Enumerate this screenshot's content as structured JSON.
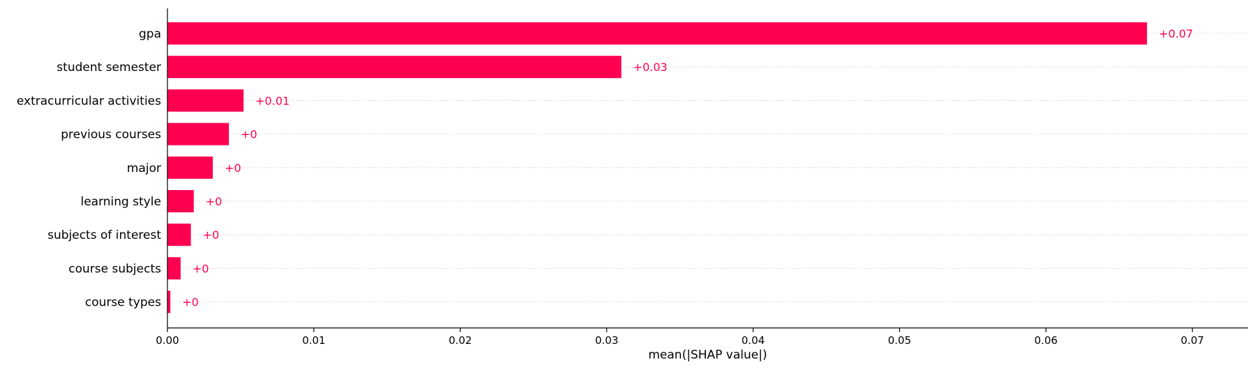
{
  "chart_data": {
    "type": "bar",
    "orientation": "horizontal",
    "categories": [
      "gpa",
      "student semester",
      "extracurricular activities",
      "previous courses",
      "major",
      "learning style",
      "subjects of interest",
      "course subjects",
      "course types"
    ],
    "values": [
      0.0669,
      0.031,
      0.0052,
      0.0042,
      0.0031,
      0.0018,
      0.0016,
      0.0009,
      0.0002
    ],
    "value_labels": [
      "+0.07",
      "+0.03",
      "+0.01",
      "+0",
      "+0",
      "+0",
      "+0",
      "+0",
      "+0"
    ],
    "xlabel": "mean(|SHAP value|)",
    "xlim": [
      0,
      0.0738
    ],
    "xticks": [
      0,
      0.01,
      0.02,
      0.03,
      0.04,
      0.05,
      0.06,
      0.07
    ],
    "xtick_labels": [
      "0.00",
      "0.01",
      "0.02",
      "0.03",
      "0.04",
      "0.05",
      "0.06",
      "0.07"
    ],
    "grid": "horizontal dotted per row",
    "bar_color": "#ff0051",
    "label_color": "#ff0051"
  }
}
